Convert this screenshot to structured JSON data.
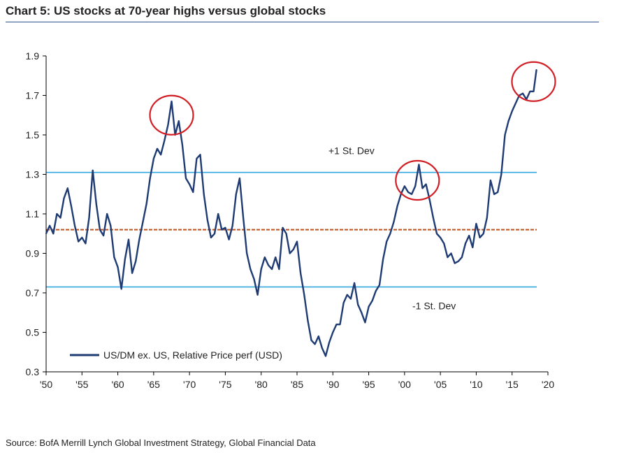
{
  "title": "Chart 5: US stocks at 70-year highs versus global stocks",
  "source": "Source: BofA Merrill Lynch Global Investment Strategy, Global Financial Data",
  "colors": {
    "series": "#1f3b73",
    "stdev": "#33a8e0",
    "mean": "#c0501c",
    "highlight": "#d21f26",
    "axis": "#000000"
  },
  "chart_data": {
    "type": "line",
    "title": "Chart 5: US stocks at 70-year highs versus global stocks",
    "xlabel": "",
    "ylabel": "",
    "xlim": [
      1950,
      2020
    ],
    "ylim": [
      0.3,
      1.9
    ],
    "x_tick_labels": [
      "'50",
      "'55",
      "'60",
      "'65",
      "'70",
      "'75",
      "'80",
      "'85",
      "'90",
      "'95",
      "'00",
      "'05",
      "'10",
      "'15",
      "'20"
    ],
    "x_ticks": [
      1950,
      1955,
      1960,
      1965,
      1970,
      1975,
      1980,
      1985,
      1990,
      1995,
      2000,
      2005,
      2010,
      2015,
      2020
    ],
    "y_ticks": [
      0.3,
      0.5,
      0.7,
      0.9,
      1.1,
      1.3,
      1.5,
      1.7,
      1.9
    ],
    "y_tick_labels": [
      "0.3",
      "0.5",
      "0.7",
      "0.9",
      "1.1",
      "1.3",
      "1.5",
      "1.7",
      "1.9"
    ],
    "legend": {
      "label": "US/DM ex. US, Relative Price perf (USD)",
      "position": "bottom-left"
    },
    "reference_lines": [
      {
        "label": "+1 St. Dev",
        "y": 1.31,
        "style": "solid"
      },
      {
        "label": "",
        "y": 1.02,
        "style": "dashed"
      },
      {
        "label": "-1 St. Dev",
        "y": 0.73,
        "style": "solid"
      }
    ],
    "highlights": [
      {
        "x": 1967.5,
        "y": 1.6
      },
      {
        "x": 2001.8,
        "y": 1.27
      },
      {
        "x": 2018.0,
        "y": 1.77
      }
    ],
    "series": [
      {
        "name": "US/DM ex. US, Relative Price perf (USD)",
        "x": [
          1950.0,
          1950.5,
          1951.0,
          1951.5,
          1952.0,
          1952.5,
          1953.0,
          1953.5,
          1954.0,
          1954.5,
          1955.0,
          1955.5,
          1956.0,
          1956.5,
          1957.0,
          1957.5,
          1958.0,
          1958.5,
          1959.0,
          1959.5,
          1960.0,
          1960.5,
          1961.0,
          1961.5,
          1962.0,
          1962.5,
          1963.0,
          1963.5,
          1964.0,
          1964.5,
          1965.0,
          1965.5,
          1966.0,
          1966.5,
          1967.0,
          1967.5,
          1968.0,
          1968.5,
          1969.0,
          1969.5,
          1970.0,
          1970.5,
          1971.0,
          1971.5,
          1972.0,
          1972.5,
          1973.0,
          1973.5,
          1974.0,
          1974.5,
          1975.0,
          1975.5,
          1976.0,
          1976.5,
          1977.0,
          1977.5,
          1978.0,
          1978.5,
          1979.0,
          1979.5,
          1980.0,
          1980.5,
          1981.0,
          1981.5,
          1982.0,
          1982.5,
          1983.0,
          1983.5,
          1984.0,
          1984.5,
          1985.0,
          1985.5,
          1986.0,
          1986.5,
          1987.0,
          1987.5,
          1988.0,
          1988.5,
          1989.0,
          1989.5,
          1990.0,
          1990.5,
          1991.0,
          1991.5,
          1992.0,
          1992.5,
          1993.0,
          1993.5,
          1994.0,
          1994.5,
          1995.0,
          1995.5,
          1996.0,
          1996.5,
          1997.0,
          1997.5,
          1998.0,
          1998.5,
          1999.0,
          1999.5,
          2000.0,
          2000.5,
          2001.0,
          2001.5,
          2002.0,
          2002.5,
          2003.0,
          2003.5,
          2004.0,
          2004.5,
          2005.0,
          2005.5,
          2006.0,
          2006.5,
          2007.0,
          2007.5,
          2008.0,
          2008.5,
          2009.0,
          2009.5,
          2010.0,
          2010.5,
          2011.0,
          2011.5,
          2012.0,
          2012.5,
          2013.0,
          2013.5,
          2014.0,
          2014.5,
          2015.0,
          2015.5,
          2016.0,
          2016.5,
          2017.0,
          2017.5,
          2018.0,
          2018.4
        ],
        "values": [
          1.0,
          1.04,
          1.0,
          1.1,
          1.08,
          1.18,
          1.23,
          1.14,
          1.04,
          0.96,
          0.98,
          0.95,
          1.08,
          1.32,
          1.15,
          1.02,
          0.99,
          1.1,
          1.04,
          0.88,
          0.83,
          0.72,
          0.87,
          0.97,
          0.8,
          0.86,
          0.97,
          1.06,
          1.15,
          1.28,
          1.38,
          1.43,
          1.4,
          1.47,
          1.55,
          1.67,
          1.5,
          1.57,
          1.45,
          1.28,
          1.25,
          1.21,
          1.38,
          1.4,
          1.2,
          1.07,
          0.98,
          1.0,
          1.1,
          1.02,
          1.03,
          0.97,
          1.04,
          1.2,
          1.28,
          1.08,
          0.9,
          0.82,
          0.77,
          0.69,
          0.82,
          0.88,
          0.84,
          0.82,
          0.88,
          0.82,
          1.03,
          1.0,
          0.9,
          0.92,
          0.96,
          0.8,
          0.69,
          0.56,
          0.46,
          0.44,
          0.48,
          0.42,
          0.38,
          0.45,
          0.5,
          0.54,
          0.54,
          0.65,
          0.69,
          0.67,
          0.75,
          0.64,
          0.6,
          0.55,
          0.63,
          0.66,
          0.71,
          0.74,
          0.87,
          0.96,
          1.0,
          1.06,
          1.14,
          1.2,
          1.24,
          1.21,
          1.2,
          1.24,
          1.35,
          1.23,
          1.25,
          1.17,
          1.08,
          1.0,
          0.98,
          0.95,
          0.88,
          0.9,
          0.85,
          0.86,
          0.88,
          0.95,
          0.99,
          0.93,
          1.05,
          0.98,
          1.0,
          1.08,
          1.27,
          1.2,
          1.21,
          1.3,
          1.5,
          1.57,
          1.62,
          1.66,
          1.7,
          1.71,
          1.68,
          1.72,
          1.72,
          1.83
        ]
      }
    ]
  }
}
